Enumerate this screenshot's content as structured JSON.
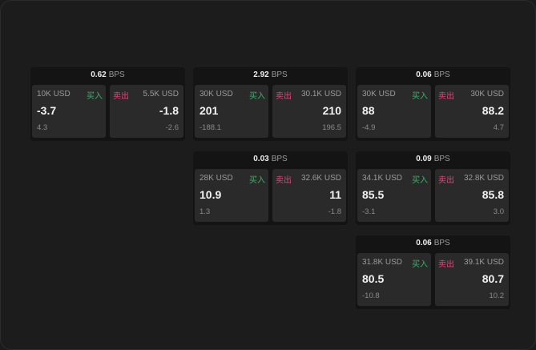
{
  "cards": [
    {
      "bps": "0.62",
      "unit": "BPS",
      "buy": {
        "qty": "10K USD",
        "label": "买入",
        "price": "-3.7",
        "change": "4.3"
      },
      "sell": {
        "qty": "5.5K USD",
        "label": "卖出",
        "price": "-1.8",
        "change": "-2.6"
      }
    },
    {
      "bps": "2.92",
      "unit": "BPS",
      "buy": {
        "qty": "30K USD",
        "label": "买入",
        "price": "201",
        "change": "-188.1"
      },
      "sell": {
        "qty": "30.1K USD",
        "label": "卖出",
        "price": "210",
        "change": "196.5"
      }
    },
    {
      "bps": "0.06",
      "unit": "BPS",
      "buy": {
        "qty": "30K USD",
        "label": "买入",
        "price": "88",
        "change": "-4.9"
      },
      "sell": {
        "qty": "30K USD",
        "label": "卖出",
        "price": "88.2",
        "change": "4.7"
      }
    },
    {
      "bps": "0.03",
      "unit": "BPS",
      "buy": {
        "qty": "28K USD",
        "label": "买入",
        "price": "10.9",
        "change": "1.3"
      },
      "sell": {
        "qty": "32.6K USD",
        "label": "卖出",
        "price": "11",
        "change": "-1.8"
      }
    },
    {
      "bps": "0.09",
      "unit": "BPS",
      "buy": {
        "qty": "34.1K USD",
        "label": "买入",
        "price": "85.5",
        "change": "-3.1"
      },
      "sell": {
        "qty": "32.8K USD",
        "label": "卖出",
        "price": "85.8",
        "change": "3.0"
      }
    },
    {
      "bps": "0.06",
      "unit": "BPS",
      "buy": {
        "qty": "31.8K USD",
        "label": "买入",
        "price": "80.5",
        "change": "-10.8"
      },
      "sell": {
        "qty": "39.1K USD",
        "label": "卖出",
        "price": "80.7",
        "change": "10.2"
      }
    }
  ],
  "colors": {
    "buy": "#3bb36a",
    "sell": "#e0457b"
  }
}
